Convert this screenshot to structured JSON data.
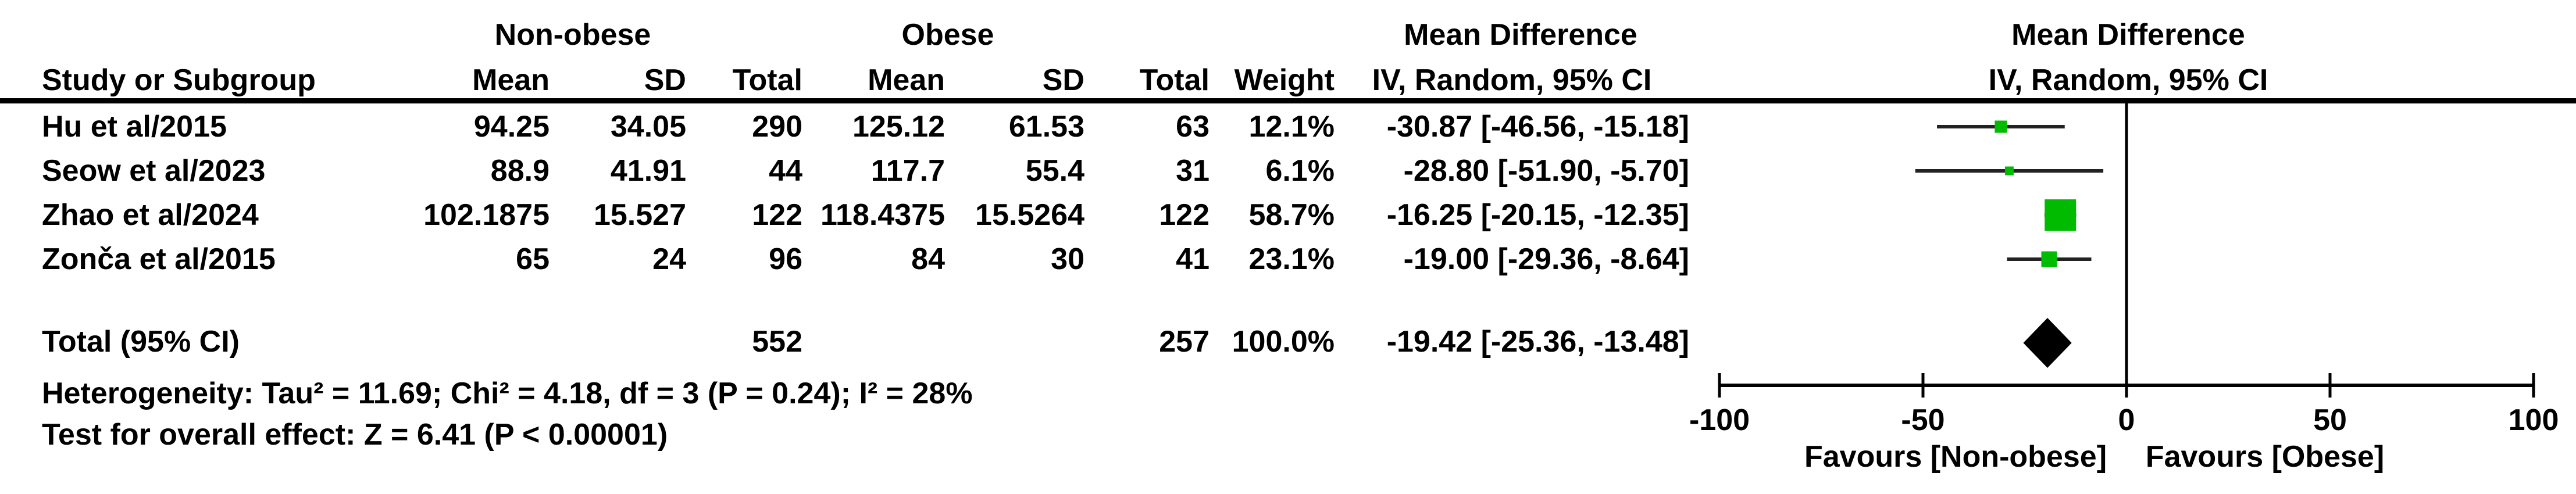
{
  "header": {
    "group1": "Non-obese",
    "group2": "Obese",
    "study_col": "Study or Subgroup",
    "mean_col": "Mean",
    "sd_col": "SD",
    "total_col": "Total",
    "weight_col": "Weight",
    "md_title": "Mean Difference",
    "md_subtitle": "IV, Random, 95% CI",
    "plot_title": "Mean Difference",
    "plot_subtitle": "IV, Random, 95% CI"
  },
  "table": {
    "rows": [
      {
        "name": "Hu et al/2015",
        "mean1": "94.25",
        "sd1": "34.05",
        "total1": "290",
        "mean2": "125.12",
        "sd2": "61.53",
        "total2": "63",
        "weight": "12.1%",
        "ci": "-30.87 [-46.56, -15.18]"
      },
      {
        "name": "Seow et al/2023",
        "mean1": "88.9",
        "sd1": "41.91",
        "total1": "44",
        "mean2": "117.7",
        "sd2": "55.4",
        "total2": "31",
        "weight": "6.1%",
        "ci": "-28.80 [-51.90, -5.70]"
      },
      {
        "name": "Zhao et al/2024",
        "mean1": "102.1875",
        "sd1": "15.527",
        "total1": "122",
        "mean2": "118.4375",
        "sd2": "15.5264",
        "total2": "122",
        "weight": "58.7%",
        "ci": "-16.25 [-20.15, -12.35]"
      },
      {
        "name": "Zonča et al/2015",
        "mean1": "65",
        "sd1": "24",
        "total1": "96",
        "mean2": "84",
        "sd2": "30",
        "total2": "41",
        "weight": "23.1%",
        "ci": "-19.00 [-29.36, -8.64]"
      }
    ],
    "total_row": {
      "label": "Total (95% CI)",
      "total1": "552",
      "total2": "257",
      "weight": "100.0%",
      "ci": "-19.42 [-25.36, -13.48]"
    }
  },
  "footer": {
    "heterogeneity": "Heterogeneity: Tau² = 11.69; Chi² = 4.18, df = 3 (P = 0.24); I² = 28%",
    "overall_effect": "Test for overall effect: Z = 6.41 (P < 0.00001)"
  },
  "colors": {
    "marker_green": "#00BB00",
    "diamond_black": "#000000",
    "ci_line": "#222222",
    "axis_black": "#000000"
  },
  "chart_data": {
    "type": "forest",
    "effect_measure": "Mean Difference",
    "model": "IV, Random, 95% CI",
    "xlim": [
      -100,
      100
    ],
    "x_ticks": [
      -100,
      -50,
      0,
      50,
      100
    ],
    "favours_left": "Favours [Non-obese]",
    "favours_right": "Favours [Obese]",
    "studies": [
      {
        "name": "Hu et al/2015",
        "est": -30.87,
        "lo": -46.56,
        "hi": -15.18,
        "weight_pct": 12.1
      },
      {
        "name": "Seow et al/2023",
        "est": -28.8,
        "lo": -51.9,
        "hi": -5.7,
        "weight_pct": 6.1
      },
      {
        "name": "Zhao et al/2024",
        "est": -16.25,
        "lo": -20.15,
        "hi": -12.35,
        "weight_pct": 58.7
      },
      {
        "name": "Zonča et al/2015",
        "est": -19.0,
        "lo": -29.36,
        "hi": -8.64,
        "weight_pct": 23.1
      }
    ],
    "overall": {
      "name": "Total (95% CI)",
      "est": -19.42,
      "lo": -25.36,
      "hi": -13.48,
      "weight_pct": 100.0
    }
  }
}
